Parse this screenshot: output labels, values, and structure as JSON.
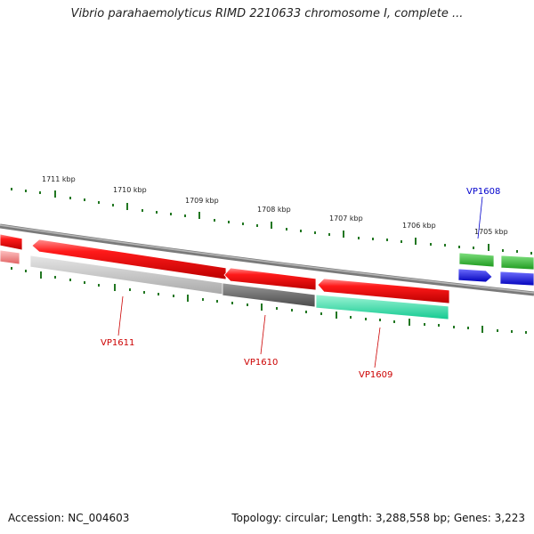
{
  "title": "Vibrio parahaemolyticus RIMD 2210633 chromosome I, complete ...",
  "footer": {
    "accession": "Accession: NC_004603",
    "topology": "Topology: circular; Length: 3,288,558 bp; Genes: 3,223"
  },
  "scale_labels": [
    "1711 kbp",
    "1710 kbp",
    "1709 kbp",
    "1708 kbp",
    "1707 kbp",
    "1706 kbp",
    "1705 kbp"
  ],
  "gene_labels": {
    "vp1608": "VP1608",
    "vp1611": "VP1611",
    "vp1610": "VP1610",
    "vp1609": "VP1609"
  },
  "colors": {
    "backbone": "#8a8a8a",
    "minus_strand_gene": "#ee0000",
    "gc_gray_light": "#c4c4c4",
    "gc_gray_dark": "#6a6a6a",
    "gc_aqua": "#22e8a8",
    "gc_green": "#33bb33",
    "plus_strand_gene": "#0000ee",
    "tick": "#227722",
    "label_red": "#cc0000",
    "label_blue": "#0000cc"
  }
}
